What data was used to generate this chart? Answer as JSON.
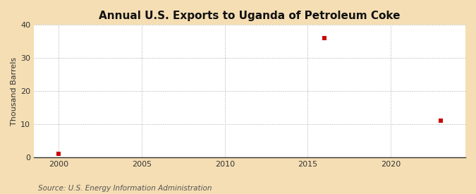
{
  "title": "Annual U.S. Exports to Uganda of Petroleum Coke",
  "ylabel": "Thousand Barrels",
  "source": "Source: U.S. Energy Information Administration",
  "figure_bg_color": "#f5deb3",
  "plot_bg_color": "#ffffff",
  "data_color": "#cc0000",
  "xlim": [
    1998.5,
    2024.5
  ],
  "ylim": [
    0,
    40
  ],
  "yticks": [
    0,
    10,
    20,
    30,
    40
  ],
  "xticks": [
    2000,
    2005,
    2010,
    2015,
    2020
  ],
  "data_x": [
    2000,
    2016,
    2023
  ],
  "data_y": [
    1,
    36,
    11
  ],
  "marker": "s",
  "marker_size": 4,
  "title_fontsize": 11,
  "ylabel_fontsize": 8,
  "tick_labelsize": 8,
  "source_fontsize": 7.5,
  "grid_color": "#aaaaaa",
  "grid_linestyle": ":",
  "grid_linewidth": 0.7
}
